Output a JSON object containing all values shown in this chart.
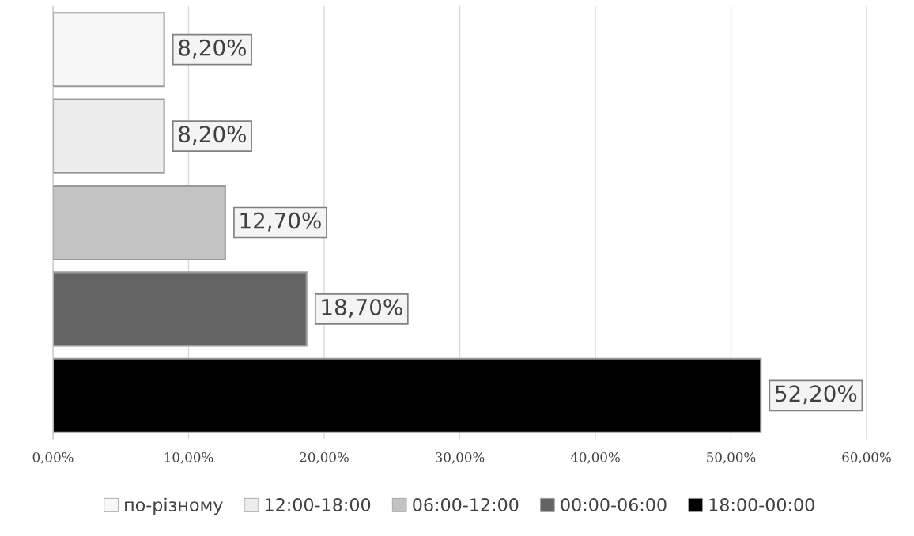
{
  "chart_data": {
    "type": "bar",
    "orientation": "horizontal",
    "categories": [
      null,
      null,
      null,
      null,
      null
    ],
    "series": [
      {
        "name": "по-різному",
        "color": "#f7f7f7",
        "values": [
          8.2,
          null,
          null,
          null,
          null
        ],
        "value_labels": [
          "8,20%",
          null,
          null,
          null,
          null
        ]
      },
      {
        "name": "12:00-18:00",
        "color": "#ececec",
        "values": [
          null,
          8.2,
          null,
          null,
          null
        ],
        "value_labels": [
          null,
          "8,20%",
          null,
          null,
          null
        ]
      },
      {
        "name": "06:00-12:00",
        "color": "#c3c3c3",
        "values": [
          null,
          null,
          12.7,
          null,
          null
        ],
        "value_labels": [
          null,
          null,
          "12,70%",
          null,
          null
        ]
      },
      {
        "name": "00:00-06:00",
        "color": "#646464",
        "values": [
          null,
          null,
          null,
          18.7,
          null
        ],
        "value_labels": [
          null,
          null,
          null,
          "18,70%",
          null
        ]
      },
      {
        "name": "18:00-00:00",
        "color": "#000000",
        "values": [
          null,
          null,
          null,
          null,
          52.2
        ],
        "value_labels": [
          null,
          null,
          null,
          null,
          "52,20%"
        ]
      }
    ],
    "xlim": [
      0,
      60
    ],
    "xticks": [
      {
        "value": 0,
        "label": "0,00%"
      },
      {
        "value": 10,
        "label": "10,00%"
      },
      {
        "value": 20,
        "label": "20,00%"
      },
      {
        "value": 30,
        "label": "30,00%"
      },
      {
        "value": 40,
        "label": "40,00%"
      },
      {
        "value": 50,
        "label": "50,00%"
      },
      {
        "value": 60,
        "label": "60,00%"
      }
    ],
    "grid": "x",
    "legend": "bottom"
  }
}
